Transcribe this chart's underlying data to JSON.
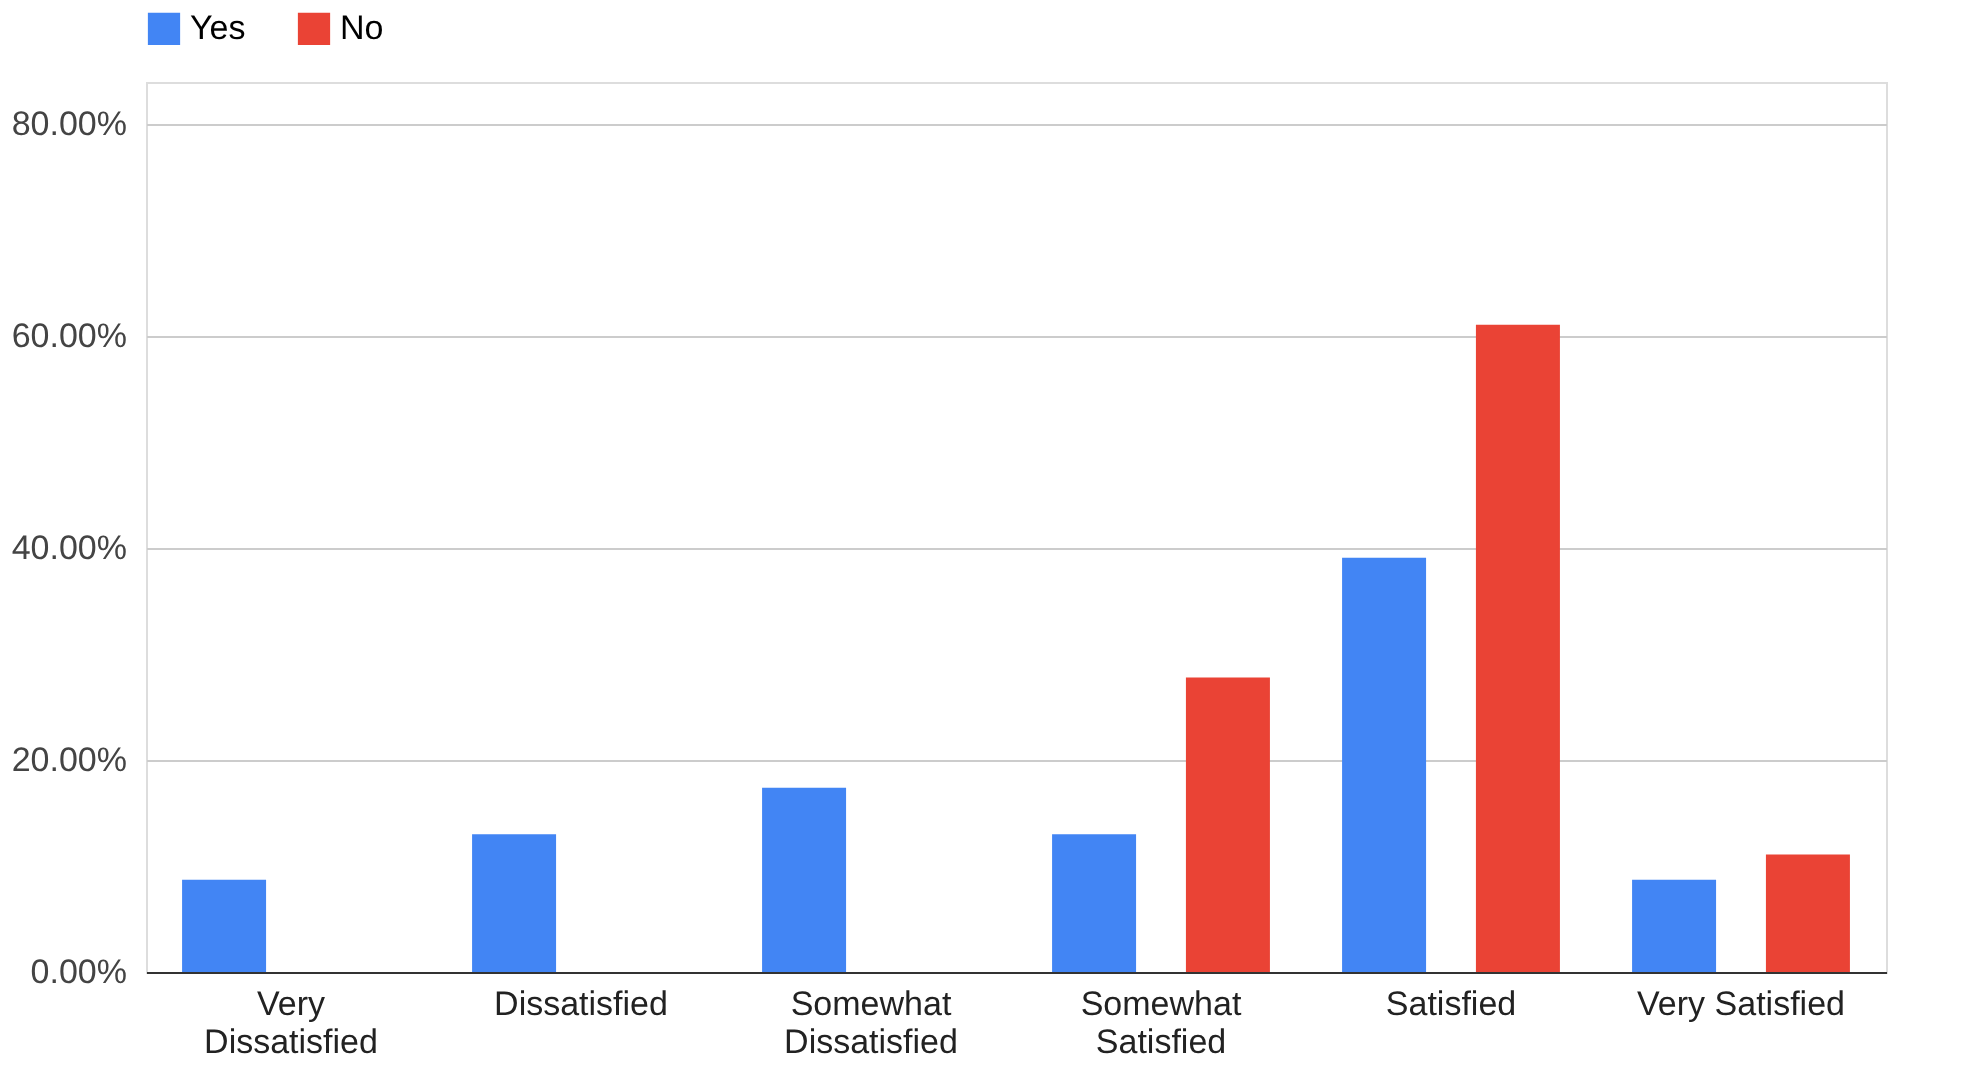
{
  "chart_data": {
    "type": "bar",
    "categories": [
      "Very Dissatisfied",
      "Dissatisfied",
      "Somewhat Dissatisfied",
      "Somewhat Satisfied",
      "Satisfied",
      "Very Satisfied"
    ],
    "series": [
      {
        "name": "Yes",
        "color": "#4285f4",
        "values": [
          8.7,
          13.0,
          17.4,
          13.0,
          39.1,
          8.7
        ]
      },
      {
        "name": "No",
        "color": "#ea4335",
        "values": [
          0,
          0,
          0,
          27.8,
          61.1,
          11.1
        ]
      }
    ],
    "ylim": [
      0,
      84
    ],
    "yticks": [
      {
        "value": 0,
        "label": "0.00%"
      },
      {
        "value": 20,
        "label": "20.00%"
      },
      {
        "value": 40,
        "label": "40.00%"
      },
      {
        "value": 60,
        "label": "60.00%"
      },
      {
        "value": 80,
        "label": "80.00%"
      }
    ],
    "grid": "y",
    "legend": "top"
  }
}
